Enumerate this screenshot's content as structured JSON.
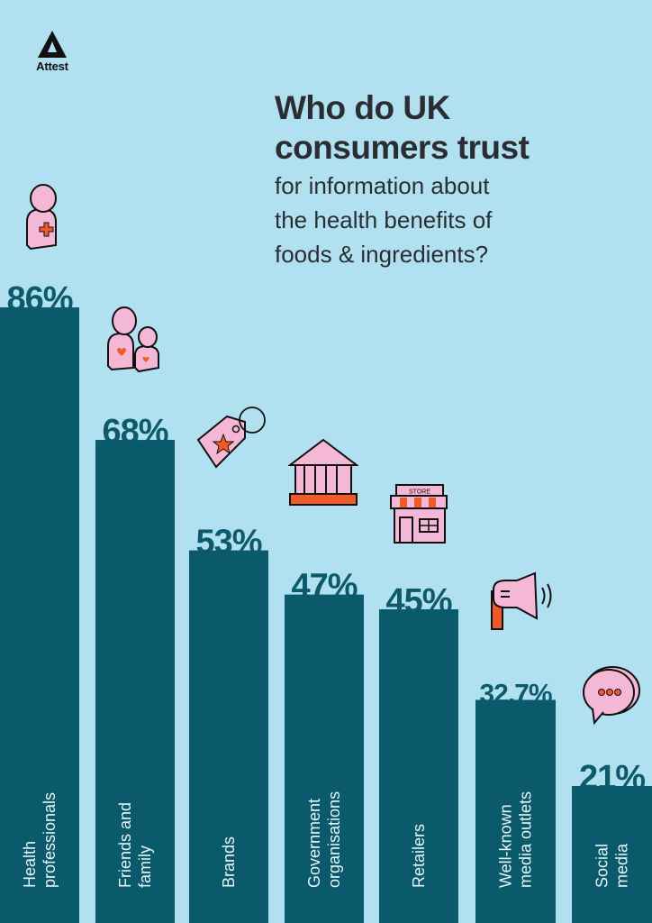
{
  "brand": {
    "name": "Attest",
    "icon": "attest-triangle-logo-icon"
  },
  "title": {
    "bold_lines": [
      "Who do UK",
      "consumers trust"
    ],
    "sub_lines": [
      "for information about",
      "the health benefits of",
      "foods & ingredients?"
    ]
  },
  "colors": {
    "background": "#b1e0f0",
    "bar": "#0b5a6b",
    "value_label": "#0c5a6b",
    "icon_fill": "#f4b8d6",
    "icon_accent": "#f05a28"
  },
  "chart_data": {
    "type": "bar",
    "title": "Who do UK consumers trust for information about the health benefits of foods & ingredients?",
    "xlabel": "",
    "ylabel": "",
    "ylim": [
      0,
      100
    ],
    "grid": false,
    "legend": "none",
    "categories": [
      [
        "Health",
        "professionals"
      ],
      [
        "Friends and",
        "family"
      ],
      [
        "Brands"
      ],
      [
        "Government",
        "organisations"
      ],
      [
        "Retailers"
      ],
      [
        "Well-known",
        "media outlets"
      ],
      [
        "Social",
        "media"
      ]
    ],
    "values": [
      86,
      68,
      53,
      47,
      45,
      32.7,
      21
    ],
    "data_labels": [
      "86%",
      "68%",
      "53%",
      "47%",
      "45%",
      "32.7%",
      "21%"
    ],
    "icons": [
      "health-professional-icon",
      "family-icon",
      "price-tag-icon",
      "government-building-icon",
      "store-icon",
      "megaphone-icon",
      "speech-bubble-icon"
    ]
  },
  "store_sign": "STORE"
}
